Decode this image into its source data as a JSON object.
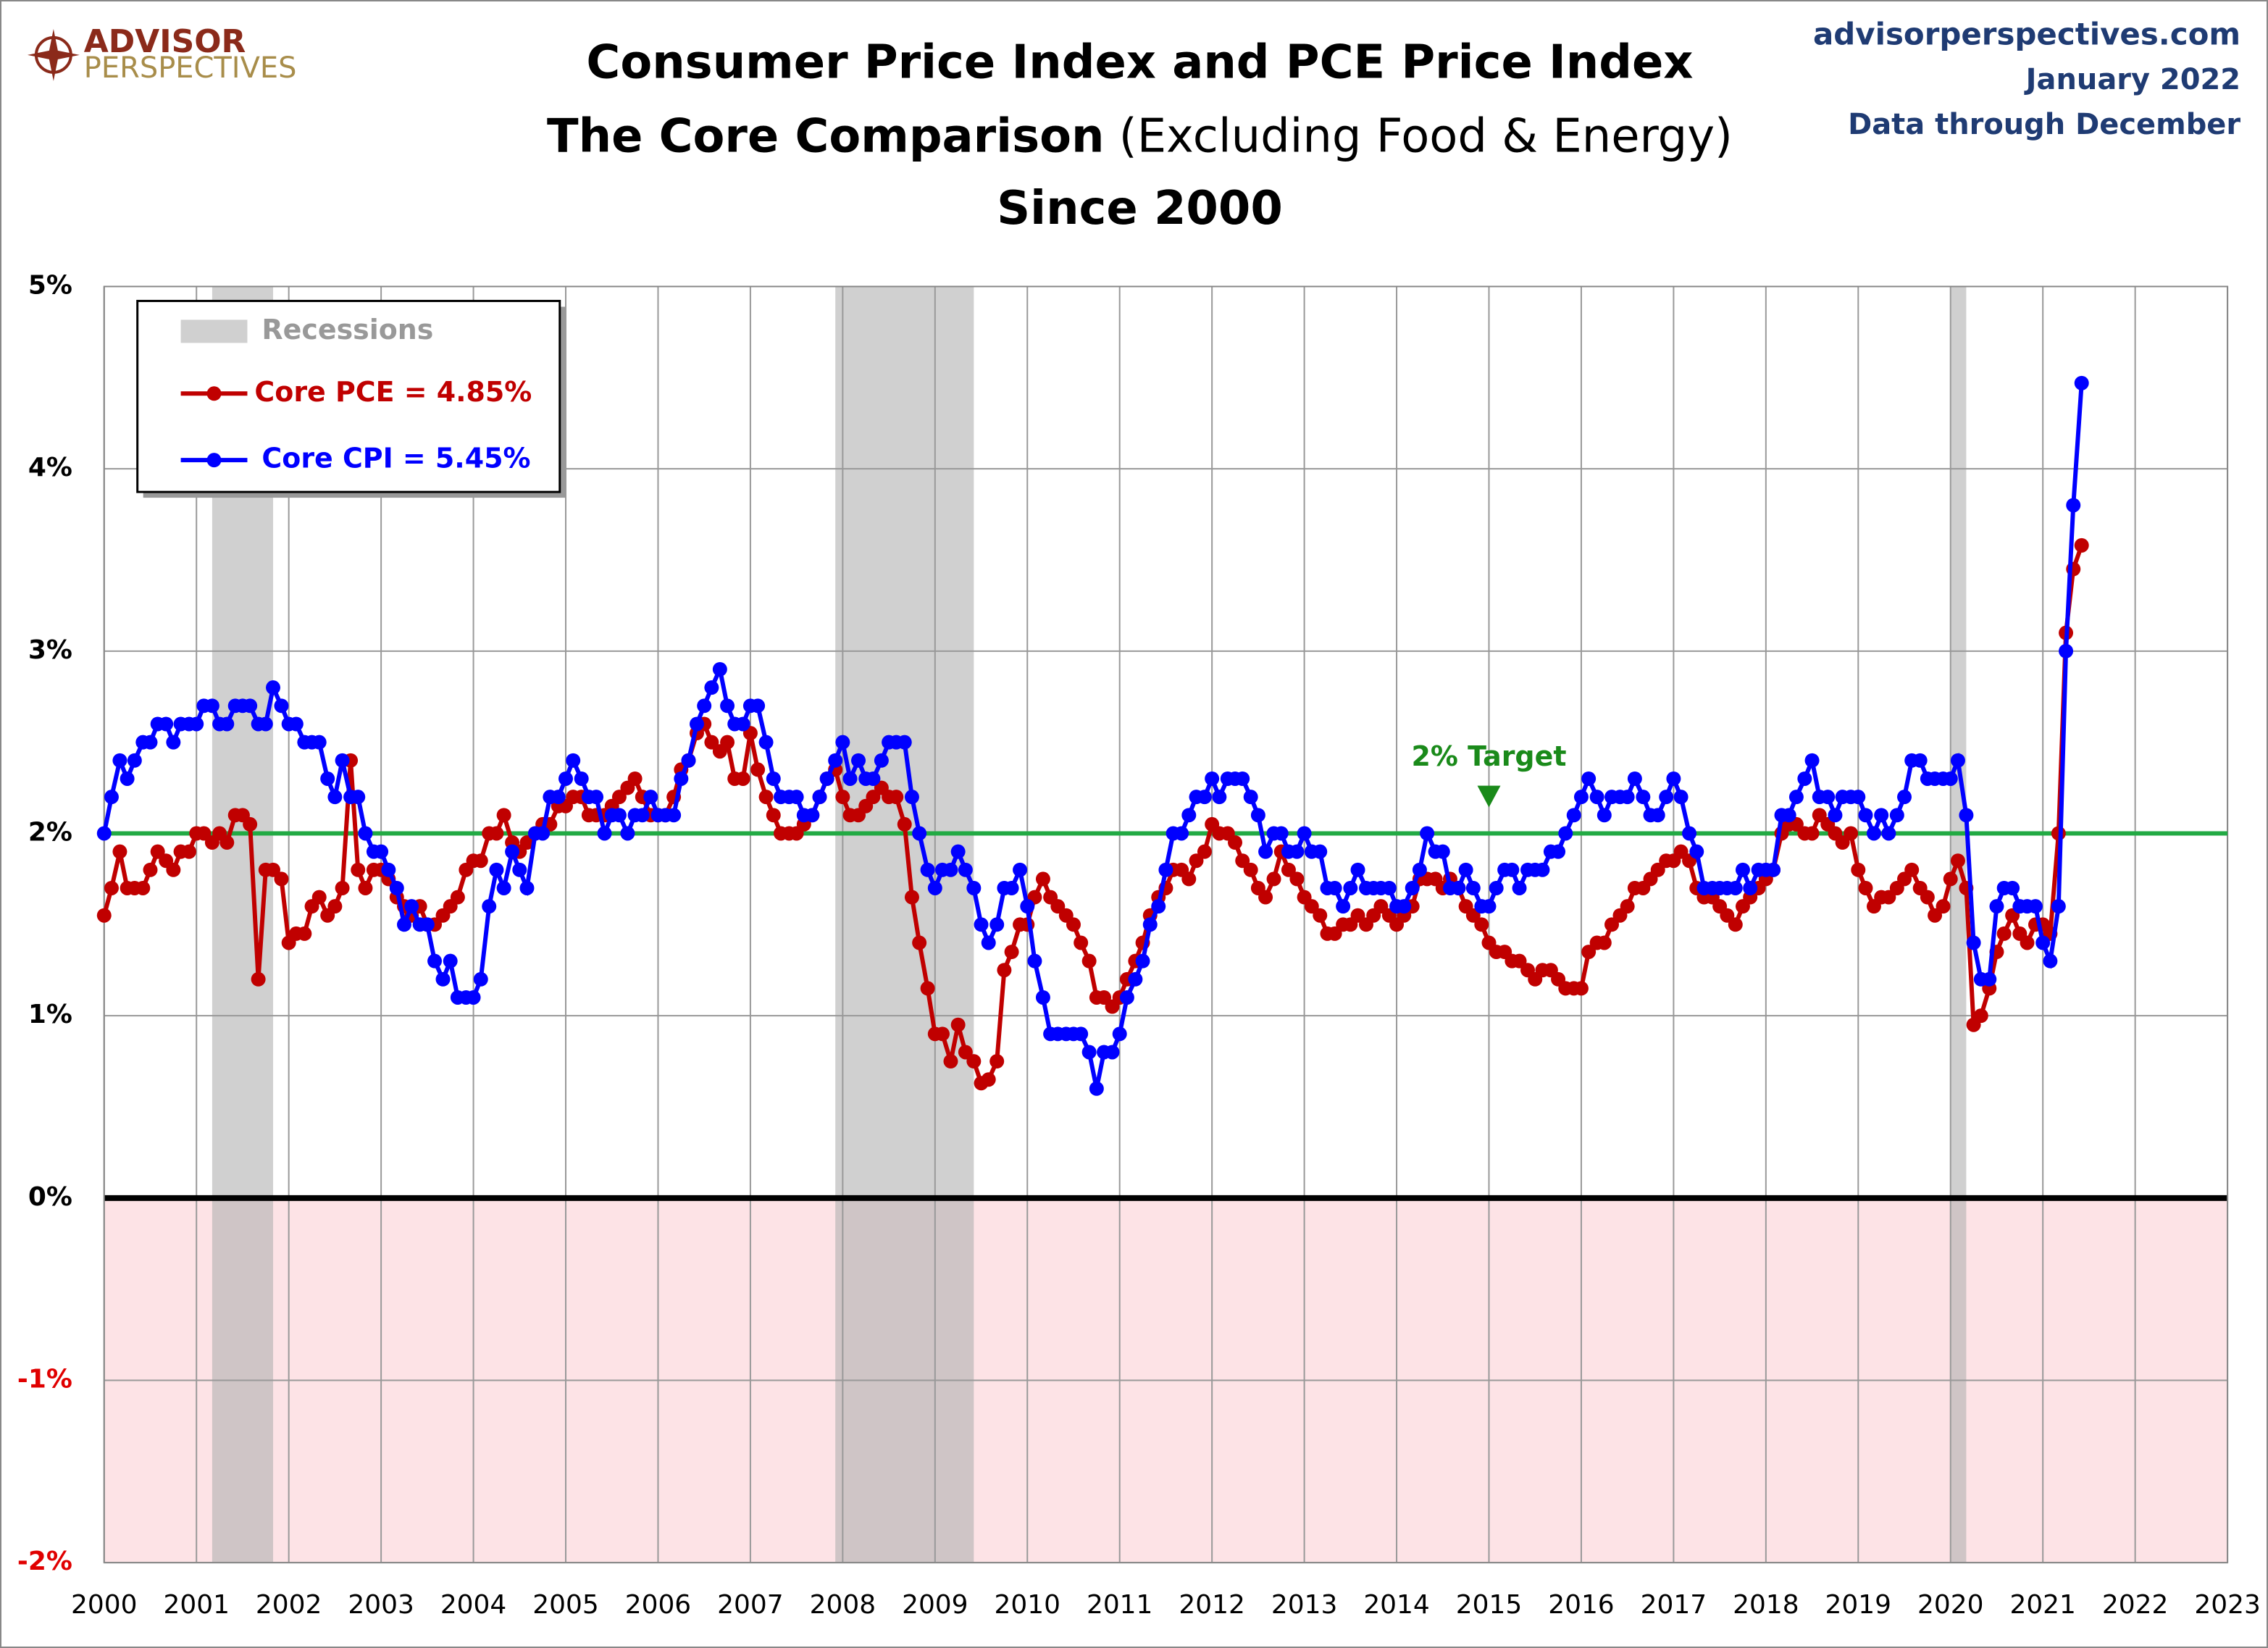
{
  "chart_data": {
    "type": "line",
    "title": "Consumer Price Index and PCE Price Index",
    "subtitle_bold": "The Core Comparison",
    "subtitle_normal": "(Excluding Food & Energy)",
    "subtitle2": "Since 2000",
    "source": "advisorperspectives.com",
    "date": "January 2022",
    "note": "Data through December",
    "logo_top": "ADVISOR",
    "logo_bottom": "PERSPECTIVES",
    "recession_label": "Recessions",
    "recessions": [
      [
        2001.17,
        2001.83
      ],
      [
        2007.92,
        2009.42
      ],
      [
        2020.0,
        2020.17
      ]
    ],
    "target": 2,
    "target_label": "2% Target",
    "target_label_x": 2015,
    "negative_fill": "#fde3e6",
    "grid": true,
    "xlim": [
      2000,
      2023
    ],
    "xticks": [
      2000,
      2001,
      2002,
      2003,
      2004,
      2005,
      2006,
      2007,
      2008,
      2009,
      2010,
      2011,
      2012,
      2013,
      2014,
      2015,
      2016,
      2017,
      2018,
      2019,
      2020,
      2021,
      2022,
      2023
    ],
    "ylim": [
      -2,
      5
    ],
    "yticks": [
      {
        "value": -2,
        "label": "-2%"
      },
      {
        "value": -1,
        "label": "-1%"
      },
      {
        "value": 0,
        "label": "0%"
      },
      {
        "value": 1,
        "label": "1%"
      },
      {
        "value": 2,
        "label": "2%"
      },
      {
        "value": 3,
        "label": "3%"
      },
      {
        "value": 4,
        "label": "4%"
      },
      {
        "value": 5,
        "label": "5%"
      }
    ],
    "x": [
      2000,
      2000.08,
      2000.17,
      2000.25,
      2000.33,
      2000.42,
      2000.5,
      2000.58,
      2000.67,
      2000.75,
      2000.83,
      2000.92,
      2001,
      2001.08,
      2001.17,
      2001.25,
      2001.33,
      2001.42,
      2001.5,
      2001.58,
      2001.67,
      2001.75,
      2001.83,
      2001.92,
      2002,
      2002.08,
      2002.17,
      2002.25,
      2002.33,
      2002.42,
      2002.5,
      2002.58,
      2002.67,
      2002.75,
      2002.83,
      2002.92,
      2003,
      2003.08,
      2003.17,
      2003.25,
      2003.33,
      2003.42,
      2003.5,
      2003.58,
      2003.67,
      2003.75,
      2003.83,
      2003.92,
      2004,
      2004.08,
      2004.17,
      2004.25,
      2004.33,
      2004.42,
      2004.5,
      2004.58,
      2004.67,
      2004.75,
      2004.83,
      2004.92,
      2005,
      2005.08,
      2005.17,
      2005.25,
      2005.33,
      2005.42,
      2005.5,
      2005.58,
      2005.67,
      2005.75,
      2005.83,
      2005.92,
      2006,
      2006.08,
      2006.17,
      2006.25,
      2006.33,
      2006.42,
      2006.5,
      2006.58,
      2006.67,
      2006.75,
      2006.83,
      2006.92,
      2007,
      2007.08,
      2007.17,
      2007.25,
      2007.33,
      2007.42,
      2007.5,
      2007.58,
      2007.67,
      2007.75,
      2007.83,
      2007.92,
      2008,
      2008.08,
      2008.17,
      2008.25,
      2008.33,
      2008.42,
      2008.5,
      2008.58,
      2008.67,
      2008.75,
      2008.83,
      2008.92,
      2009,
      2009.08,
      2009.17,
      2009.25,
      2009.33,
      2009.42,
      2009.5,
      2009.58,
      2009.67,
      2009.75,
      2009.83,
      2009.92,
      2010,
      2010.08,
      2010.17,
      2010.25,
      2010.33,
      2010.42,
      2010.5,
      2010.58,
      2010.67,
      2010.75,
      2010.83,
      2010.92,
      2011,
      2011.08,
      2011.17,
      2011.25,
      2011.33,
      2011.42,
      2011.5,
      2011.58,
      2011.67,
      2011.75,
      2011.83,
      2011.92,
      2012,
      2012.08,
      2012.17,
      2012.25,
      2012.33,
      2012.42,
      2012.5,
      2012.58,
      2012.67,
      2012.75,
      2012.83,
      2012.92,
      2013,
      2013.08,
      2013.17,
      2013.25,
      2013.33,
      2013.42,
      2013.5,
      2013.58,
      2013.67,
      2013.75,
      2013.83,
      2013.92,
      2014,
      2014.08,
      2014.17,
      2014.25,
      2014.33,
      2014.42,
      2014.5,
      2014.58,
      2014.67,
      2014.75,
      2014.83,
      2014.92,
      2015,
      2015.08,
      2015.17,
      2015.25,
      2015.33,
      2015.42,
      2015.5,
      2015.58,
      2015.67,
      2015.75,
      2015.83,
      2015.92,
      2016,
      2016.08,
      2016.17,
      2016.25,
      2016.33,
      2016.42,
      2016.5,
      2016.58,
      2016.67,
      2016.75,
      2016.83,
      2016.92,
      2017,
      2017.08,
      2017.17,
      2017.25,
      2017.33,
      2017.42,
      2017.5,
      2017.58,
      2017.67,
      2017.75,
      2017.83,
      2017.92,
      2018,
      2018.08,
      2018.17,
      2018.25,
      2018.33,
      2018.42,
      2018.5,
      2018.58,
      2018.67,
      2018.75,
      2018.83,
      2018.92,
      2019,
      2019.08,
      2019.17,
      2019.25,
      2019.33,
      2019.42,
      2019.5,
      2019.58,
      2019.67,
      2019.75,
      2019.83,
      2019.92,
      2020,
      2020.08,
      2020.17,
      2020.25,
      2020.33,
      2020.42,
      2020.5,
      2020.58,
      2020.67,
      2020.75,
      2020.83,
      2020.92,
      2021,
      2021.08,
      2021.17,
      2021.25,
      2021.33,
      2021.42
    ],
    "series": [
      {
        "name": "Core PCE = 4.85%",
        "color": "#c00000",
        "values": [
          1.55,
          1.7,
          1.9,
          1.7,
          1.7,
          1.7,
          1.8,
          1.9,
          1.85,
          1.8,
          1.9,
          1.9,
          2.0,
          2.0,
          1.95,
          2.0,
          1.95,
          2.1,
          2.1,
          2.05,
          1.2,
          1.8,
          1.8,
          1.75,
          1.4,
          1.45,
          1.45,
          1.6,
          1.65,
          1.55,
          1.6,
          1.7,
          2.4,
          1.8,
          1.7,
          1.8,
          1.8,
          1.75,
          1.65,
          1.6,
          1.55,
          1.6,
          1.5,
          1.5,
          1.55,
          1.6,
          1.65,
          1.8,
          1.85,
          1.85,
          2.0,
          2.0,
          2.1,
          1.95,
          1.9,
          1.95,
          2.0,
          2.05,
          2.05,
          2.15,
          2.15,
          2.2,
          2.2,
          2.1,
          2.1,
          2.1,
          2.15,
          2.2,
          2.25,
          2.3,
          2.2,
          2.1,
          2.1,
          2.1,
          2.2,
          2.35,
          2.4,
          2.55,
          2.6,
          2.5,
          2.45,
          2.5,
          2.3,
          2.3,
          2.55,
          2.35,
          2.2,
          2.1,
          2.0,
          2.0,
          2.0,
          2.05,
          2.1,
          2.2,
          2.3,
          2.35,
          2.2,
          2.1,
          2.1,
          2.15,
          2.2,
          2.25,
          2.2,
          2.2,
          2.05,
          1.65,
          1.4,
          1.15,
          0.9,
          0.9,
          0.75,
          0.95,
          0.8,
          0.75,
          0.63,
          0.65,
          0.75,
          1.25,
          1.35,
          1.5,
          1.5,
          1.65,
          1.75,
          1.65,
          1.6,
          1.55,
          1.5,
          1.4,
          1.3,
          1.1,
          1.1,
          1.05,
          1.1,
          1.2,
          1.3,
          1.4,
          1.55,
          1.65,
          1.7,
          1.8,
          1.8,
          1.75,
          1.85,
          1.9,
          2.05,
          2.0,
          2.0,
          1.95,
          1.85,
          1.8,
          1.7,
          1.65,
          1.75,
          1.9,
          1.8,
          1.75,
          1.65,
          1.6,
          1.55,
          1.45,
          1.45,
          1.5,
          1.5,
          1.55,
          1.5,
          1.55,
          1.6,
          1.55,
          1.5,
          1.55,
          1.6,
          1.75,
          1.75,
          1.75,
          1.7,
          1.75,
          1.7,
          1.6,
          1.55,
          1.5,
          1.4,
          1.35,
          1.35,
          1.3,
          1.3,
          1.25,
          1.2,
          1.25,
          1.25,
          1.2,
          1.15,
          1.15,
          1.15,
          1.35,
          1.4,
          1.4,
          1.5,
          1.55,
          1.6,
          1.7,
          1.7,
          1.75,
          1.8,
          1.85,
          1.85,
          1.9,
          1.85,
          1.7,
          1.65,
          1.65,
          1.6,
          1.55,
          1.5,
          1.6,
          1.65,
          1.7,
          1.75,
          1.8,
          2.0,
          2.05,
          2.05,
          2.0,
          2.0,
          2.1,
          2.05,
          2.0,
          1.95,
          2.0,
          1.8,
          1.7,
          1.6,
          1.65,
          1.65,
          1.7,
          1.75,
          1.8,
          1.7,
          1.65,
          1.55,
          1.6,
          1.75,
          1.85,
          1.7,
          0.95,
          1.0,
          1.15,
          1.35,
          1.45,
          1.55,
          1.45,
          1.4,
          1.5,
          1.5,
          1.45,
          2.0,
          3.1,
          3.45,
          3.58
        ]
      },
      {
        "name": "Core CPI = 5.45%",
        "color": "#0000ff",
        "values": [
          2.0,
          2.2,
          2.4,
          2.3,
          2.4,
          2.5,
          2.5,
          2.6,
          2.6,
          2.5,
          2.6,
          2.6,
          2.6,
          2.7,
          2.7,
          2.6,
          2.6,
          2.7,
          2.7,
          2.7,
          2.6,
          2.6,
          2.8,
          2.7,
          2.6,
          2.6,
          2.5,
          2.5,
          2.5,
          2.3,
          2.2,
          2.4,
          2.2,
          2.2,
          2.0,
          1.9,
          1.9,
          1.8,
          1.7,
          1.5,
          1.6,
          1.5,
          1.5,
          1.3,
          1.2,
          1.3,
          1.1,
          1.1,
          1.1,
          1.2,
          1.6,
          1.8,
          1.7,
          1.9,
          1.8,
          1.7,
          2.0,
          2.0,
          2.2,
          2.2,
          2.3,
          2.4,
          2.3,
          2.2,
          2.2,
          2.0,
          2.1,
          2.1,
          2.0,
          2.1,
          2.1,
          2.2,
          2.1,
          2.1,
          2.1,
          2.3,
          2.4,
          2.6,
          2.7,
          2.8,
          2.9,
          2.7,
          2.6,
          2.6,
          2.7,
          2.7,
          2.5,
          2.3,
          2.2,
          2.2,
          2.2,
          2.1,
          2.1,
          2.2,
          2.3,
          2.4,
          2.5,
          2.3,
          2.4,
          2.3,
          2.3,
          2.4,
          2.5,
          2.5,
          2.5,
          2.2,
          2.0,
          1.8,
          1.7,
          1.8,
          1.8,
          1.9,
          1.8,
          1.7,
          1.5,
          1.4,
          1.5,
          1.7,
          1.7,
          1.8,
          1.6,
          1.3,
          1.1,
          0.9,
          0.9,
          0.9,
          0.9,
          0.9,
          0.8,
          0.6,
          0.8,
          0.8,
          0.9,
          1.1,
          1.2,
          1.3,
          1.5,
          1.6,
          1.8,
          2.0,
          2.0,
          2.1,
          2.2,
          2.2,
          2.3,
          2.2,
          2.3,
          2.3,
          2.3,
          2.2,
          2.1,
          1.9,
          2.0,
          2.0,
          1.9,
          1.9,
          2.0,
          1.9,
          1.9,
          1.7,
          1.7,
          1.6,
          1.7,
          1.8,
          1.7,
          1.7,
          1.7,
          1.7,
          1.6,
          1.6,
          1.7,
          1.8,
          2.0,
          1.9,
          1.9,
          1.7,
          1.7,
          1.8,
          1.7,
          1.6,
          1.6,
          1.7,
          1.8,
          1.8,
          1.7,
          1.8,
          1.8,
          1.8,
          1.9,
          1.9,
          2.0,
          2.1,
          2.2,
          2.3,
          2.2,
          2.1,
          2.2,
          2.2,
          2.2,
          2.3,
          2.2,
          2.1,
          2.1,
          2.2,
          2.3,
          2.2,
          2.0,
          1.9,
          1.7,
          1.7,
          1.7,
          1.7,
          1.7,
          1.8,
          1.7,
          1.8,
          1.8,
          1.8,
          2.1,
          2.1,
          2.2,
          2.3,
          2.4,
          2.2,
          2.2,
          2.1,
          2.2,
          2.2,
          2.2,
          2.1,
          2.0,
          2.1,
          2.0,
          2.1,
          2.2,
          2.4,
          2.4,
          2.3,
          2.3,
          2.3,
          2.3,
          2.4,
          2.1,
          1.4,
          1.2,
          1.2,
          1.6,
          1.7,
          1.7,
          1.6,
          1.6,
          1.6,
          1.4,
          1.3,
          1.6,
          3.0,
          3.8,
          4.47
        ]
      }
    ]
  }
}
